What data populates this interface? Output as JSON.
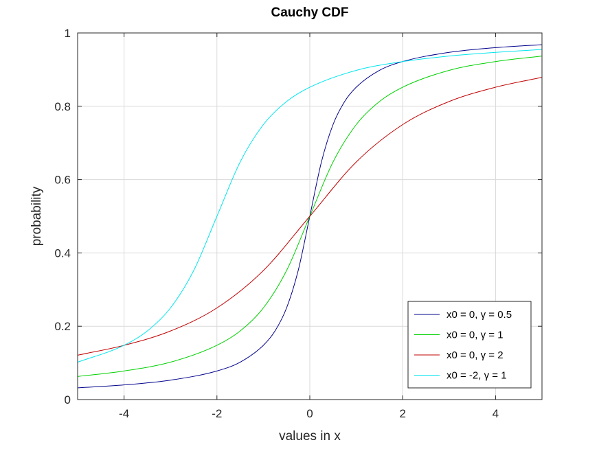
{
  "chart_data": {
    "type": "line",
    "title": "Cauchy CDF",
    "xlabel": "values in x",
    "ylabel": "probability",
    "xlim": [
      -5,
      5
    ],
    "ylim": [
      0,
      1
    ],
    "xticks": [
      -4,
      -2,
      0,
      2,
      4
    ],
    "xtick_labels": [
      "-4",
      "-2",
      "0",
      "2",
      "4"
    ],
    "yticks": [
      0,
      0.2,
      0.4,
      0.6,
      0.8,
      1
    ],
    "ytick_labels": [
      "0",
      "0.2",
      "0.4",
      "0.6",
      "0.8",
      "1"
    ],
    "grid": true,
    "legend_position": "bottom-right",
    "series": [
      {
        "name": "x0 = 0, γ = 0.5",
        "color": "#00008b",
        "x": [
          -5,
          -4,
          -3,
          -2,
          -1.5,
          -1,
          -0.75,
          -0.5,
          -0.25,
          0,
          0.25,
          0.5,
          0.75,
          1,
          1.5,
          2,
          3,
          4,
          5
        ],
        "y": [
          0.032,
          0.04,
          0.053,
          0.078,
          0.102,
          0.148,
          0.187,
          0.25,
          0.352,
          0.5,
          0.648,
          0.75,
          0.813,
          0.852,
          0.898,
          0.922,
          0.947,
          0.96,
          0.968
        ]
      },
      {
        "name": "x0 = 0, γ = 1",
        "color": "#00d100",
        "x": [
          -5,
          -4,
          -3,
          -2,
          -1.5,
          -1,
          -0.5,
          0,
          0.5,
          1,
          1.5,
          2,
          3,
          4,
          5
        ],
        "y": [
          0.063,
          0.078,
          0.102,
          0.148,
          0.187,
          0.25,
          0.352,
          0.5,
          0.648,
          0.75,
          0.813,
          0.852,
          0.898,
          0.922,
          0.937
        ]
      },
      {
        "name": "x0 = 0, γ = 2",
        "color": "#c00000",
        "x": [
          -5,
          -4,
          -3,
          -2,
          -1,
          0,
          1,
          2,
          3,
          4,
          5
        ],
        "y": [
          0.121,
          0.148,
          0.187,
          0.25,
          0.352,
          0.5,
          0.648,
          0.75,
          0.813,
          0.852,
          0.879
        ]
      },
      {
        "name": "x0 = -2, γ = 1",
        "color": "#00e5ee",
        "x": [
          -5,
          -4,
          -3.5,
          -3,
          -2.5,
          -2,
          -1.5,
          -1,
          -0.5,
          0,
          1,
          2,
          3,
          4,
          5
        ],
        "y": [
          0.102,
          0.148,
          0.187,
          0.25,
          0.352,
          0.5,
          0.648,
          0.75,
          0.813,
          0.852,
          0.898,
          0.922,
          0.937,
          0.947,
          0.955
        ]
      }
    ]
  }
}
